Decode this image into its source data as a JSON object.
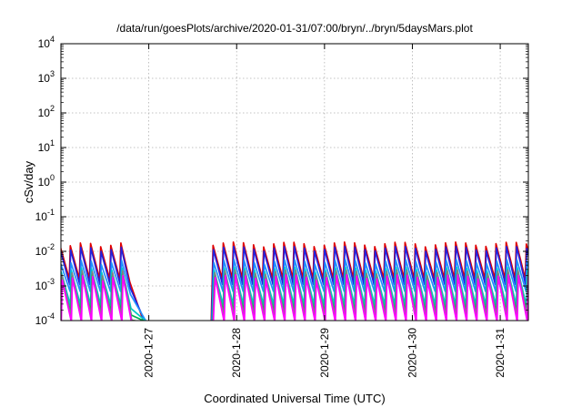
{
  "chart_data": {
    "type": "line",
    "title": "/data/run/goesPlots/archive/2020-01-31/07:00/bryn/../bryn/5daysMars.plot",
    "xlabel": "Coordinated Universal Time (UTC)",
    "ylabel": "cSv/day",
    "x_ticks": [
      "2020-1-27",
      "2020-1-28",
      "2020-1-29",
      "2020-1-30",
      "2020-1-31"
    ],
    "x_tick_days": [
      27,
      28,
      29,
      30,
      31
    ],
    "xlim_days": [
      26.0,
      31.32
    ],
    "ylim": [
      0.0001,
      10000
    ],
    "yscale": "log",
    "y_ticks": [
      {
        "base": "10",
        "exp": "4",
        "value": 10000
      },
      {
        "base": "10",
        "exp": "3",
        "value": 1000
      },
      {
        "base": "10",
        "exp": "2",
        "value": 100
      },
      {
        "base": "10",
        "exp": "1",
        "value": 10
      },
      {
        "base": "10",
        "exp": "0",
        "value": 1
      },
      {
        "base": "10",
        "exp": "-1",
        "value": 0.1
      },
      {
        "base": "10",
        "exp": "-2",
        "value": 0.01
      },
      {
        "base": "10",
        "exp": "-3",
        "value": 0.001
      },
      {
        "base": "10",
        "exp": "-4",
        "value": 0.0001
      }
    ],
    "grid": true,
    "pattern": {
      "period_days": 0.115,
      "gap_days": [
        26.75,
        27.72
      ],
      "decay_end_days": [
        26.95,
        27.08
      ]
    },
    "series": [
      {
        "color": "#e00000",
        "peak": 0.016,
        "trough": 0.0016
      },
      {
        "color": "#2222dd",
        "peak": 0.012,
        "trough": 0.0011
      },
      {
        "color": "#1e90ff",
        "peak": 0.005,
        "trough": 0.0007
      },
      {
        "color": "#00c8c8",
        "peak": 0.003,
        "trough": 0.00028
      },
      {
        "color": "#00b050",
        "peak": 0.002,
        "trough": 0.00018
      },
      {
        "color": "#808080",
        "peak": 0.0025,
        "trough": 0.00013
      },
      {
        "color": "#ff00ff",
        "peak": 0.0018,
        "trough": 9e-05
      }
    ]
  }
}
